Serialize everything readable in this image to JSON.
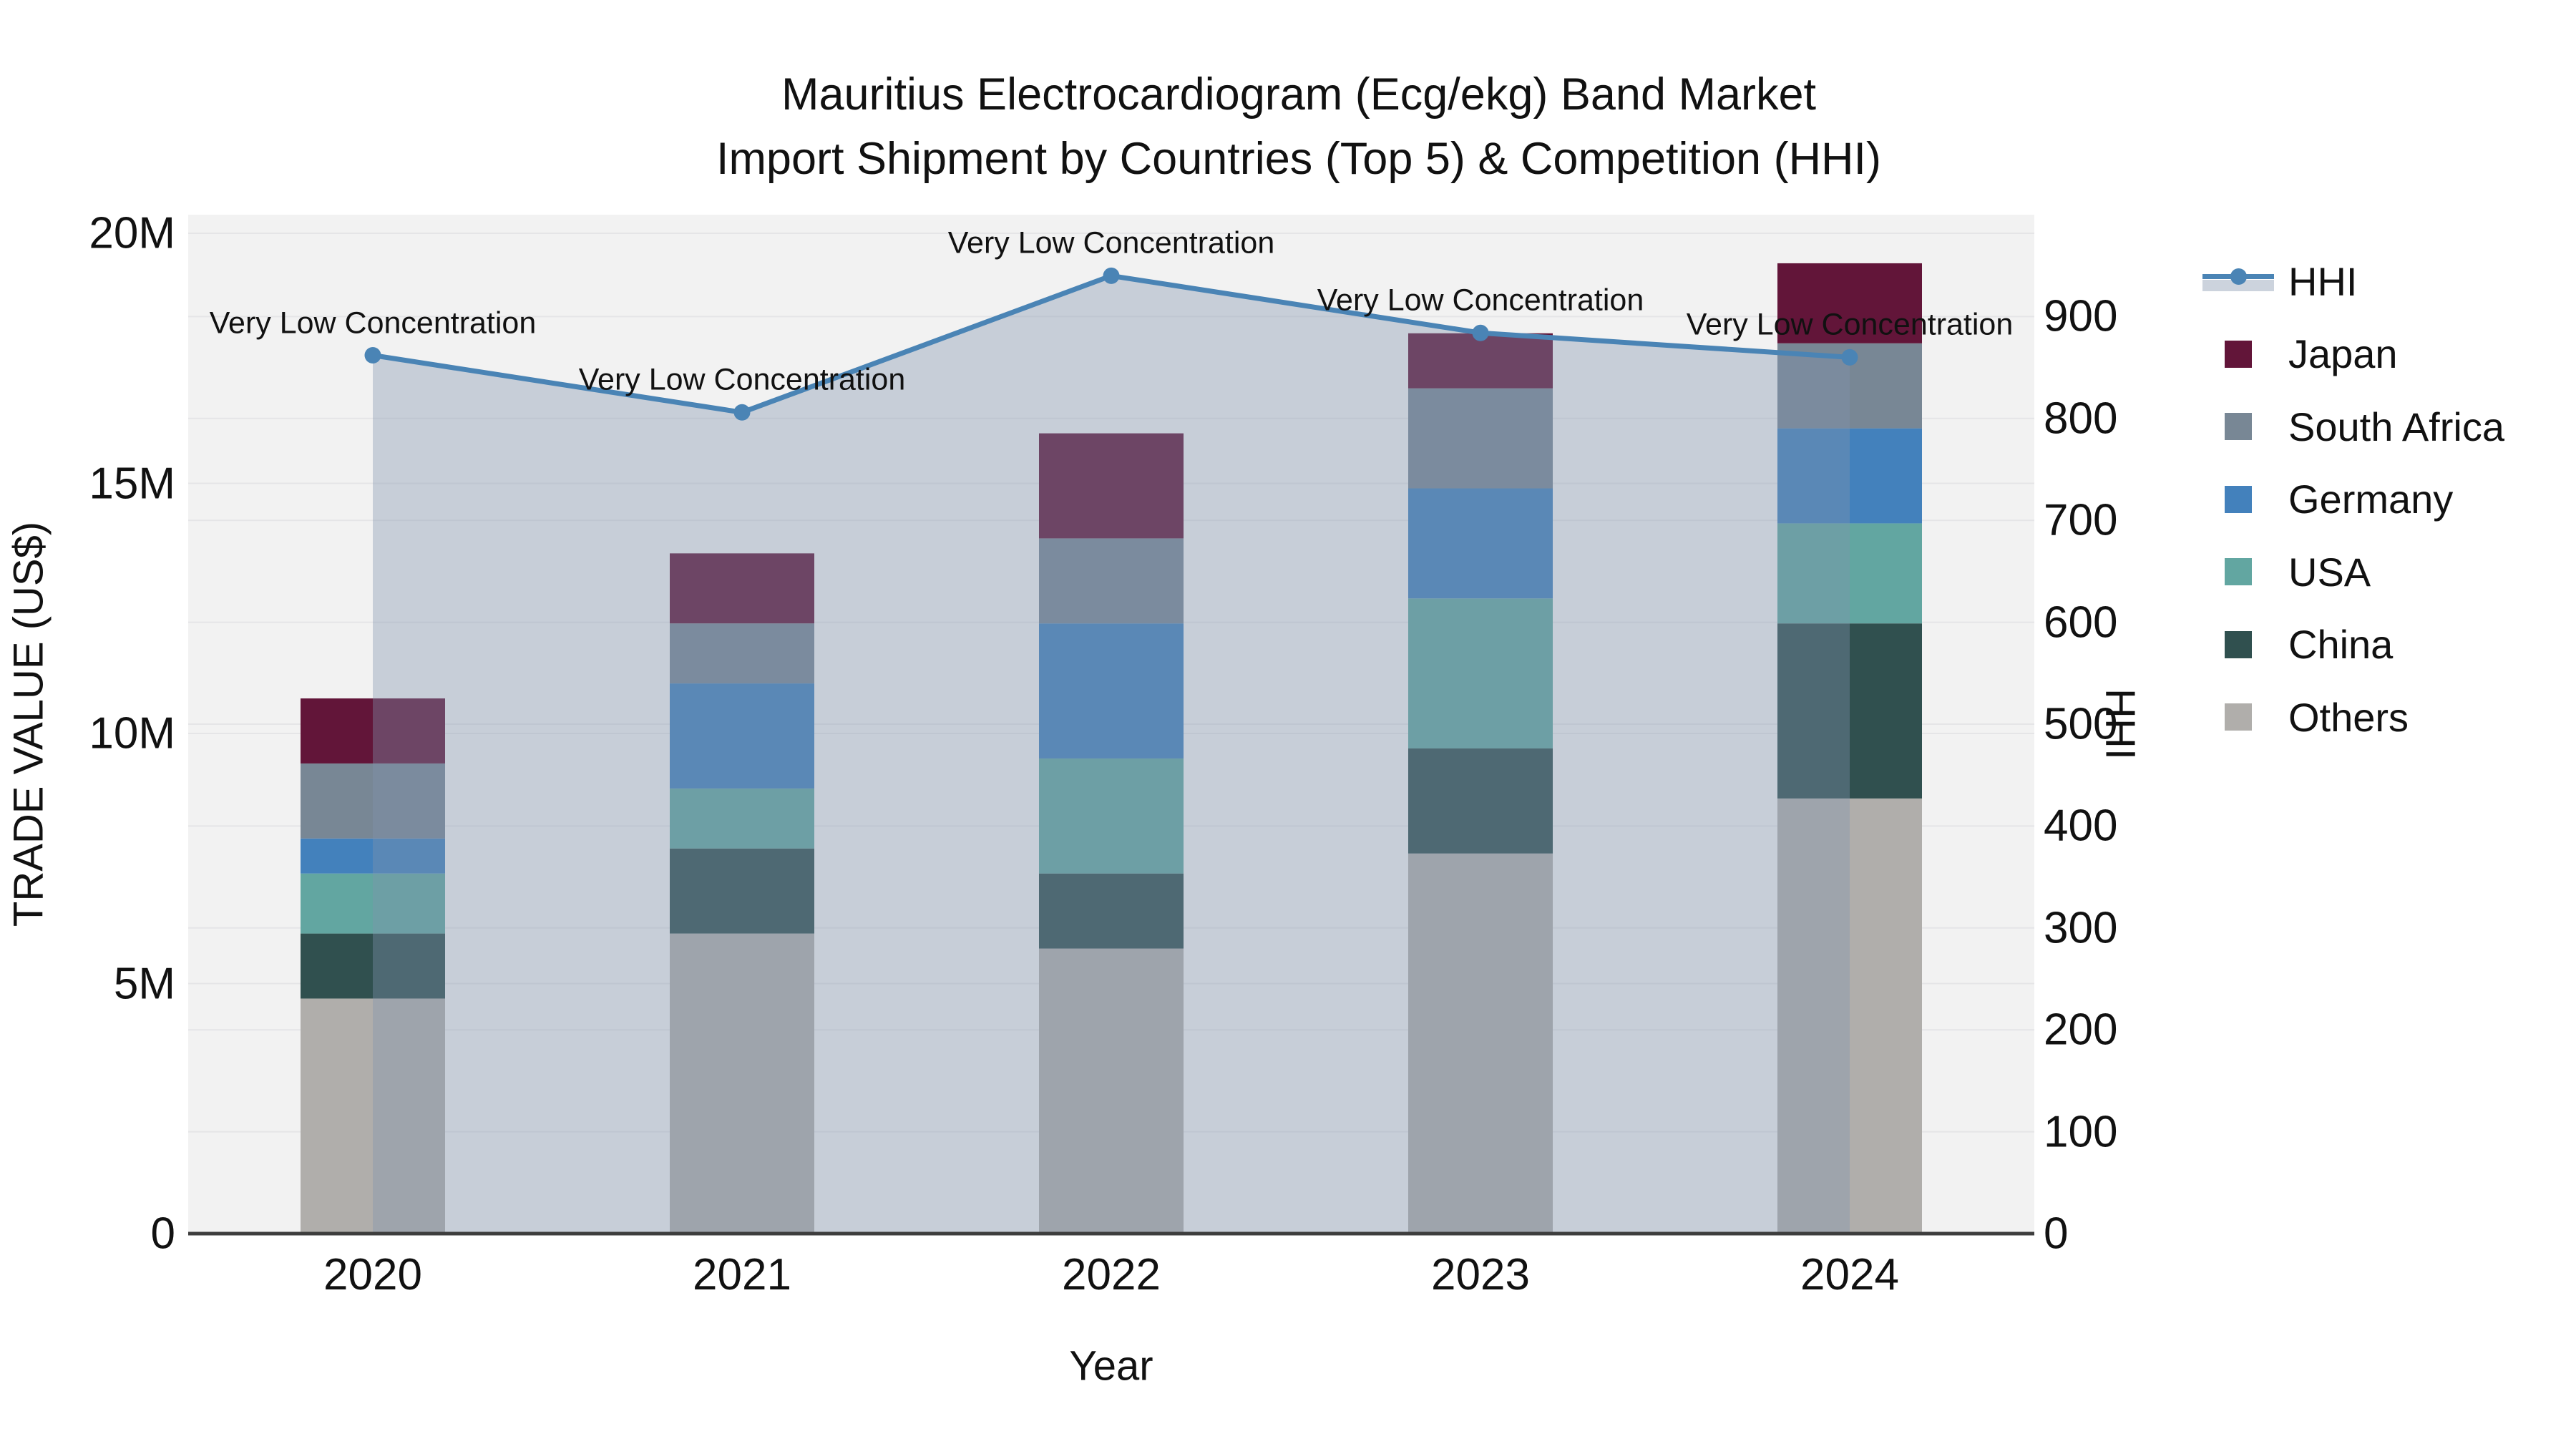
{
  "title": {
    "line1": "Mauritius Electrocardiogram (Ecg/ekg) Band Market",
    "line2": "Import Shipment by Countries (Top 5) & Competition (HHI)"
  },
  "axes": {
    "x": {
      "title": "Year",
      "tick_labels": [
        "2020",
        "2021",
        "2022",
        "2023",
        "2024"
      ]
    },
    "y_left": {
      "title": "TRADE VALUE (US$)",
      "tick_labels": [
        "0",
        "5M",
        "10M",
        "15M",
        "20M"
      ],
      "tick_values": [
        0,
        5000000,
        10000000,
        15000000,
        20000000
      ]
    },
    "y_right": {
      "title": "HHI",
      "tick_labels": [
        "0",
        "100",
        "200",
        "300",
        "400",
        "500",
        "600",
        "700",
        "800",
        "900"
      ],
      "tick_values": [
        0,
        100,
        200,
        300,
        400,
        500,
        600,
        700,
        800,
        900
      ]
    }
  },
  "legend": {
    "position": "right",
    "items": [
      {
        "label": "HHI",
        "type": "line",
        "color": "#4a84b5"
      },
      {
        "label": "Japan",
        "type": "swatch",
        "color": "#621539"
      },
      {
        "label": "South Africa",
        "type": "swatch",
        "color": "#788795"
      },
      {
        "label": "Germany",
        "type": "swatch",
        "color": "#4381bc"
      },
      {
        "label": "USA",
        "type": "swatch",
        "color": "#62a6a1"
      },
      {
        "label": "China",
        "type": "swatch",
        "color": "#30504f"
      },
      {
        "label": "Others",
        "type": "swatch",
        "color": "#b0aeab"
      }
    ]
  },
  "colors": {
    "plot_background": "#f2f2f2",
    "gridline": "#e5e5e7",
    "axis_line": "#3d3d3d",
    "hhi_line": "#4a84b5",
    "hhi_fill": "rgba(128,146,173,0.38)"
  },
  "chart_data": {
    "type": "bar",
    "subtype": "stacked-with-line",
    "title": "Mauritius Electrocardiogram (Ecg/ekg) Band Market Import Shipment by Countries (Top 5) & Competition (HHI)",
    "xlabel": "Year",
    "ylabel_left": "TRADE VALUE (US$)",
    "ylabel_right": "HHI",
    "categories": [
      "2020",
      "2021",
      "2022",
      "2023",
      "2024"
    ],
    "ylim_left": [
      0,
      20000000
    ],
    "ylim_right": [
      0,
      900
    ],
    "grid": true,
    "series": [
      {
        "name": "Others",
        "axis": "left",
        "color": "#b0aeab",
        "values": [
          4700000,
          6000000,
          5700000,
          7600000,
          8700000
        ]
      },
      {
        "name": "China",
        "axis": "left",
        "color": "#30504f",
        "values": [
          1300000,
          1700000,
          1500000,
          2100000,
          3500000
        ]
      },
      {
        "name": "USA",
        "axis": "left",
        "color": "#62a6a1",
        "values": [
          1200000,
          1200000,
          2300000,
          3000000,
          2000000
        ]
      },
      {
        "name": "Germany",
        "axis": "left",
        "color": "#4381bc",
        "values": [
          700000,
          2100000,
          2700000,
          2200000,
          1900000
        ]
      },
      {
        "name": "South Africa",
        "axis": "left",
        "color": "#788795",
        "values": [
          1500000,
          1200000,
          1700000,
          2000000,
          1700000
        ]
      },
      {
        "name": "Japan",
        "axis": "left",
        "color": "#621539",
        "values": [
          1300000,
          1400000,
          2100000,
          1100000,
          1600000
        ]
      }
    ],
    "line": {
      "name": "HHI",
      "axis": "right",
      "color": "#4a84b5",
      "fill_to_zero": true,
      "values": [
        862,
        806,
        940,
        884,
        860
      ],
      "annotations": [
        "Very Low Concentration",
        "Very Low Concentration",
        "Very Low Concentration",
        "Very Low Concentration",
        "Very Low Concentration"
      ]
    }
  }
}
